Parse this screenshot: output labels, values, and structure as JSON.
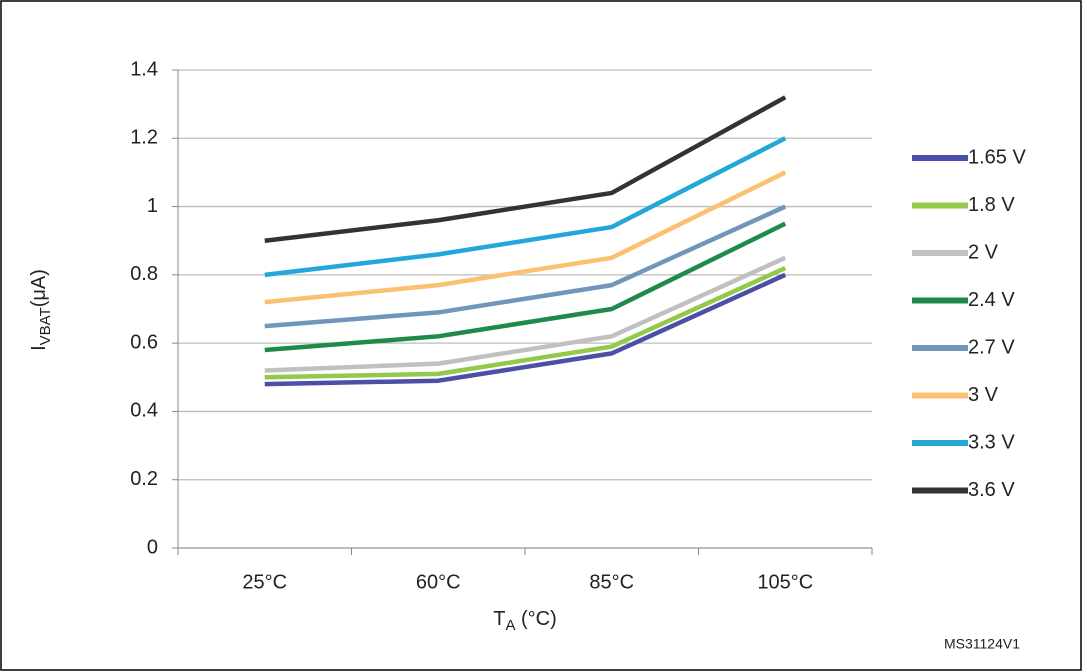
{
  "chart_data": {
    "type": "line",
    "categories": [
      "25°C",
      "60°C",
      "85°C",
      "105°C"
    ],
    "series": [
      {
        "name": "1.65 V",
        "color": "#4b4fa6",
        "values": [
          0.48,
          0.49,
          0.57,
          0.8
        ]
      },
      {
        "name": "1.8 V",
        "color": "#92c94a",
        "values": [
          0.5,
          0.51,
          0.59,
          0.82
        ]
      },
      {
        "name": "2 V",
        "color": "#c0c0c0",
        "values": [
          0.52,
          0.54,
          0.62,
          0.85
        ]
      },
      {
        "name": "2.4 V",
        "color": "#1f8a4c",
        "values": [
          0.58,
          0.62,
          0.7,
          0.95
        ]
      },
      {
        "name": "2.7 V",
        "color": "#7096bb",
        "values": [
          0.65,
          0.69,
          0.77,
          1.0
        ]
      },
      {
        "name": "3 V",
        "color": "#fbc070",
        "values": [
          0.72,
          0.77,
          0.85,
          1.1
        ]
      },
      {
        "name": "3.3 V",
        "color": "#22a7d9",
        "values": [
          0.8,
          0.86,
          0.94,
          1.2
        ]
      },
      {
        "name": "3.6 V",
        "color": "#333333",
        "values": [
          0.9,
          0.96,
          1.04,
          1.32
        ]
      }
    ],
    "ylim": [
      0,
      1.4
    ],
    "yticks": [
      0,
      0.2,
      0.4,
      0.6,
      0.8,
      1,
      1.2,
      1.4
    ],
    "grid": true,
    "ylabel": {
      "main": "I",
      "sub": "VBAT",
      "unit": "(μA)"
    },
    "xlabel": {
      "main": "T",
      "sub": "A",
      "unit": " (°C)"
    },
    "legend": "right",
    "note": "MS31124V1"
  }
}
